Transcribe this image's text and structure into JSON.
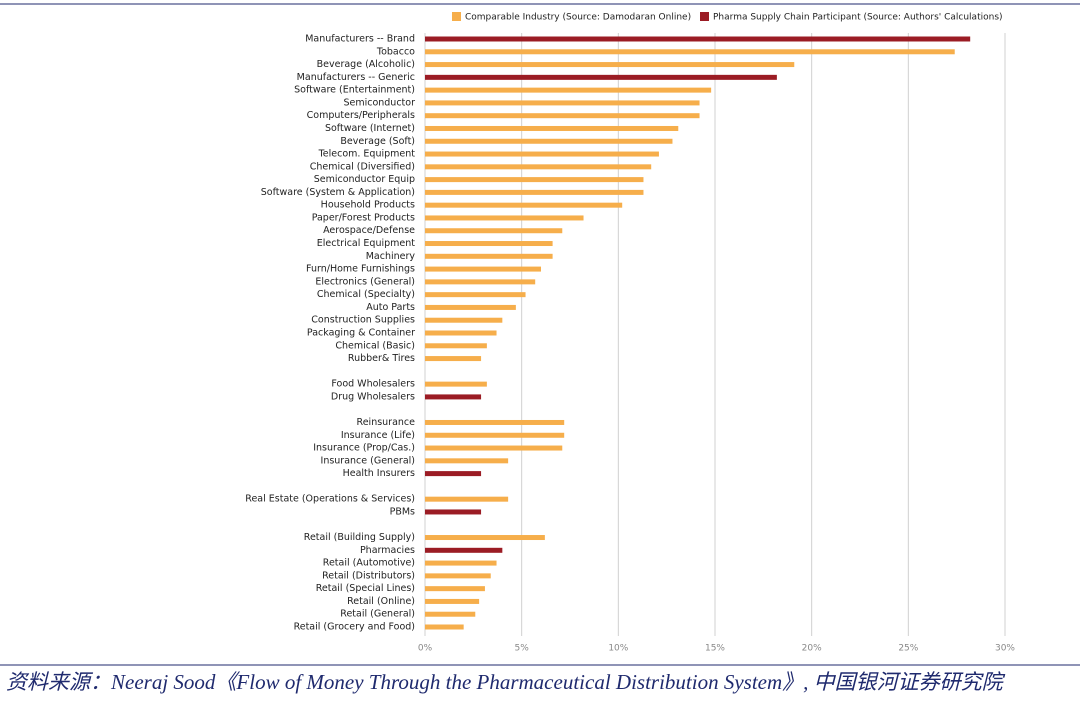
{
  "chart_data": {
    "type": "bar",
    "orientation": "horizontal",
    "categories": [
      "Manufacturers -- Brand",
      "Tobacco",
      "Beverage (Alcoholic)",
      "Manufacturers -- Generic",
      "Software (Entertainment)",
      "Semiconductor",
      "Computers/Peripherals",
      "Software (Internet)",
      "Beverage (Soft)",
      "Telecom. Equipment",
      "Chemical (Diversified)",
      "Semiconductor Equip",
      "Software (System & Application)",
      "Household Products",
      "Paper/Forest Products",
      "Aerospace/Defense",
      "Electrical Equipment",
      "Machinery",
      "Furn/Home Furnishings",
      "Electronics (General)",
      "Chemical (Specialty)",
      "Auto Parts",
      "Construction Supplies",
      "Packaging & Container",
      "Chemical (Basic)",
      "Rubber& Tires",
      null,
      "Food Wholesalers",
      "Drug Wholesalers",
      null,
      "Reinsurance",
      "Insurance (Life)",
      "Insurance (Prop/Cas.)",
      "Insurance (General)",
      "Health Insurers",
      null,
      "Real Estate (Operations & Services)",
      "PBMs",
      null,
      "Retail (Building Supply)",
      "Pharmacies",
      "Retail (Automotive)",
      "Retail (Distributors)",
      "Retail (Special Lines)",
      "Retail (Online)",
      "Retail (General)",
      "Retail (Grocery and Food)"
    ],
    "series": [
      {
        "name": "Comparable Industry (Source: Damodaran Online)",
        "color": "#f6ae4b",
        "values": [
          null,
          27.4,
          19.1,
          null,
          14.8,
          14.2,
          14.2,
          13.1,
          12.8,
          12.1,
          11.7,
          11.3,
          11.3,
          10.2,
          8.2,
          7.1,
          6.6,
          6.6,
          6.0,
          5.7,
          5.2,
          4.7,
          4.0,
          3.7,
          3.2,
          2.9,
          null,
          3.2,
          null,
          null,
          7.2,
          7.2,
          7.1,
          4.3,
          null,
          null,
          4.3,
          null,
          null,
          6.2,
          null,
          3.7,
          3.4,
          3.1,
          2.8,
          2.6,
          2.0
        ]
      },
      {
        "name": "Pharma Supply Chain Participant (Source: Authors' Calculations)",
        "color": "#9b1c24",
        "values": [
          28.2,
          null,
          null,
          18.2,
          null,
          null,
          null,
          null,
          null,
          null,
          null,
          null,
          null,
          null,
          null,
          null,
          null,
          null,
          null,
          null,
          null,
          null,
          null,
          null,
          null,
          null,
          null,
          null,
          2.9,
          null,
          null,
          null,
          null,
          null,
          2.9,
          null,
          null,
          2.9,
          null,
          null,
          4.0,
          null,
          null,
          null,
          null,
          null,
          null
        ]
      }
    ],
    "xlim": [
      0,
      30
    ],
    "xticks": [
      {
        "value": 0,
        "label": "0%"
      },
      {
        "value": 5,
        "label": "5%"
      },
      {
        "value": 10,
        "label": "10%"
      },
      {
        "value": 15,
        "label": "15%"
      },
      {
        "value": 20,
        "label": "20%"
      },
      {
        "value": 25,
        "label": "25%"
      },
      {
        "value": 30,
        "label": "30%"
      }
    ],
    "grid": true
  },
  "source": "资料来源：Neeraj Sood《Flow of Money Through the Pharmaceutical Distribution System》, 中国银河证券研究院"
}
